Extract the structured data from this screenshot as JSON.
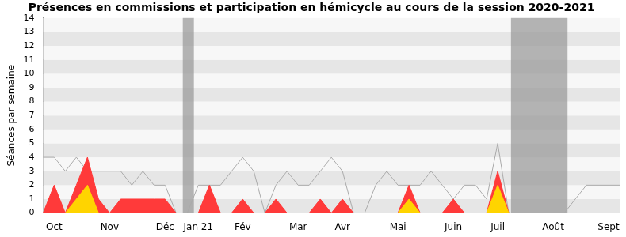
{
  "chart_data": {
    "type": "area",
    "title": "Présences en commissions et participation en hémicycle au cours de la session 2020-2021",
    "y_label": "Séances par semaine",
    "categories": [
      null,
      "Oct",
      null,
      null,
      null,
      null,
      "Nov",
      null,
      null,
      null,
      null,
      "Déc",
      null,
      null,
      "Jan 21",
      null,
      null,
      null,
      "Fév",
      null,
      null,
      null,
      null,
      "Mar",
      null,
      null,
      null,
      "Avr",
      null,
      null,
      null,
      null,
      "Mai",
      null,
      null,
      null,
      null,
      "Juin",
      null,
      null,
      null,
      "Juil",
      null,
      null,
      null,
      null,
      "Août",
      null,
      null,
      null,
      null,
      "Sept",
      null
    ],
    "series": [
      {
        "type": "area",
        "color": "#ffd400",
        "values": [
          0,
          0,
          0,
          1,
          2,
          0,
          0,
          0,
          0,
          0,
          0,
          0,
          0,
          0,
          0,
          0,
          0,
          0,
          0,
          0,
          0,
          0,
          0,
          0,
          0,
          0,
          0,
          0,
          0,
          0,
          0,
          0,
          0,
          1,
          0,
          0,
          0,
          0,
          0,
          0,
          0,
          2,
          0,
          0,
          0,
          0,
          0,
          0,
          0,
          0,
          0,
          0,
          0
        ]
      },
      {
        "type": "area",
        "color": "#ff3a3a",
        "values": [
          0,
          2,
          0,
          2,
          4,
          1,
          0,
          1,
          1,
          1,
          1,
          1,
          0,
          0,
          0,
          2,
          0,
          0,
          1,
          0,
          0,
          1,
          0,
          0,
          0,
          1,
          0,
          1,
          0,
          0,
          0,
          0,
          0,
          2,
          0,
          0,
          0,
          1,
          0,
          0,
          0,
          3,
          0,
          0,
          0,
          0,
          0,
          0,
          0,
          0,
          0,
          0,
          0
        ]
      },
      {
        "type": "line",
        "color": "#aaaaaa",
        "values": [
          4,
          4,
          3,
          4,
          3,
          3,
          3,
          3,
          2,
          3,
          2,
          2,
          0,
          0,
          2,
          2,
          2,
          3,
          4,
          3,
          0,
          2,
          3,
          2,
          2,
          3,
          4,
          3,
          0,
          0,
          2,
          3,
          2,
          2,
          2,
          3,
          2,
          1,
          2,
          2,
          1,
          5,
          0,
          0,
          0,
          0,
          0,
          0,
          1,
          2,
          2,
          2,
          2
        ]
      }
    ],
    "shaded_weeks": [
      [
        12.6,
        13.6
      ],
      [
        42.2,
        47.3
      ]
    ],
    "ylim": [
      0,
      14
    ],
    "yticks": [
      0,
      1,
      2,
      3,
      4,
      5,
      6,
      7,
      8,
      9,
      10,
      11,
      12,
      13,
      14
    ],
    "grid": true
  }
}
